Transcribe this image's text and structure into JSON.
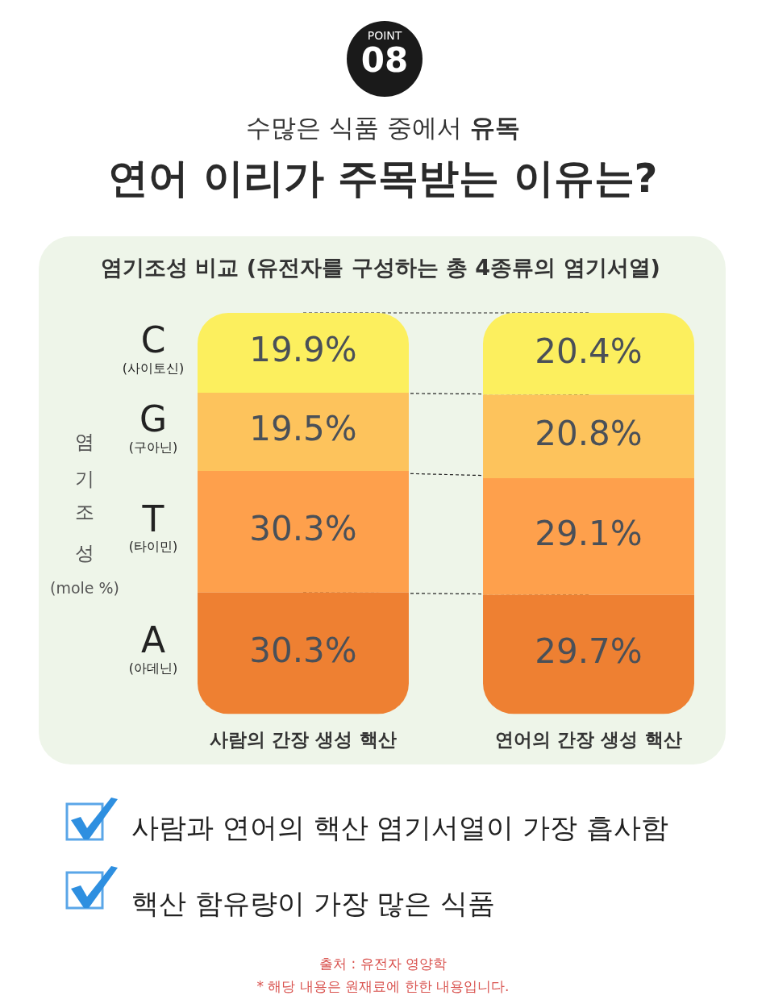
{
  "chart_data": {
    "type": "bar",
    "stacked": true,
    "title": "연어 이리가 주목받는 이유는?",
    "subtitle": "수많은 식품 중에서 유독",
    "ylabel": "염기조성 (mole %)",
    "categories": [
      "사람의 간장 생성 핵산",
      "연어의 간장 생성 핵산"
    ],
    "series": [
      {
        "name": "A (아데닌)",
        "color": "#ee8032",
        "values": [
          30.3,
          29.7
        ],
        "value_labels": [
          "30.3%",
          "29.7%"
        ]
      },
      {
        "name": "T (타이민)",
        "color": "#fea04c",
        "values": [
          30.3,
          29.1
        ],
        "value_labels": [
          "30.3%",
          "29.1%"
        ]
      },
      {
        "name": "G (구아닌)",
        "color": "#fdc35c",
        "values": [
          19.5,
          20.8
        ],
        "value_labels": [
          "19.5%",
          "20.8%"
        ]
      },
      {
        "name": "C (사이토신)",
        "color": "#fcef5e",
        "values": [
          19.9,
          20.4
        ],
        "value_labels": [
          "19.9%",
          "20.4%"
        ]
      }
    ],
    "annotations": [
      "POINT",
      "08",
      "염기조성 비교 (유전자를 구성하는 총 4종류의 염기서열)",
      "사람과 연어의 핵산 염기서열이 가장 흡사함",
      "핵산 함유량이 가장 많은 식품",
      "출처 : 유전자 영양학",
      "* 해당 내용은 원재료에 한한 내용입니다."
    ],
    "legend": false,
    "grid": false
  }
}
